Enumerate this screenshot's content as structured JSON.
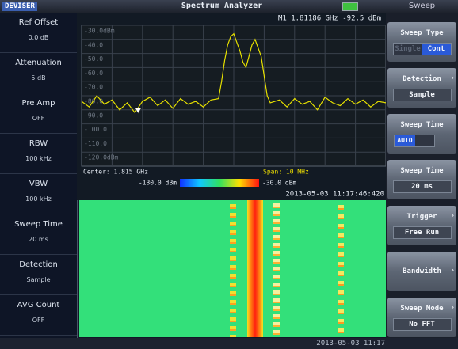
{
  "header": {
    "logo": "DEVISER",
    "title": "Spectrum Analyzer",
    "mode": "Sweep"
  },
  "left_panel": [
    {
      "label": "Ref Offset",
      "value": "0.0 dB"
    },
    {
      "label": "Attenuation",
      "value": "5 dB"
    },
    {
      "label": "Pre Amp",
      "value": "OFF"
    },
    {
      "label": "RBW",
      "value": "100 kHz"
    },
    {
      "label": "VBW",
      "value": "100 kHz"
    },
    {
      "label": "Sweep Time",
      "value": "20 ms"
    },
    {
      "label": "Detection",
      "value": "Sample"
    },
    {
      "label": "AVG Count",
      "value": "OFF"
    }
  ],
  "spectrum": {
    "marker": {
      "label": "M1 1.81186 GHz -92.5 dBm",
      "x": 1.81186,
      "y": -92.5
    },
    "xlim": [
      1.81,
      1.82
    ],
    "ylim": [
      -130,
      -30
    ],
    "yticks": [
      {
        "value": -30,
        "label": "-30.0dBm"
      },
      {
        "value": -40,
        "label": "-40.0"
      },
      {
        "value": -50,
        "label": "-50.0"
      },
      {
        "value": -60,
        "label": "-60.0"
      },
      {
        "value": -70,
        "label": "-70.0"
      },
      {
        "value": -80,
        "label": "-80.0"
      },
      {
        "value": -90,
        "label": "-90.0"
      },
      {
        "value": -100,
        "label": "-100.0"
      },
      {
        "value": -110,
        "label": "-110.0"
      },
      {
        "value": -120,
        "label": "-120.0dBm"
      }
    ],
    "trace": {
      "color": "#e6e000",
      "x": [
        1.81,
        1.81025,
        1.8105,
        1.81075,
        1.811,
        1.81125,
        1.8115,
        1.81175,
        1.812,
        1.81225,
        1.8125,
        1.81275,
        1.813,
        1.81325,
        1.8135,
        1.81375,
        1.814,
        1.81425,
        1.8145,
        1.8146,
        1.8147,
        1.8148,
        1.8149,
        1.815,
        1.8151,
        1.8152,
        1.8153,
        1.8154,
        1.8155,
        1.8156,
        1.8157,
        1.8158,
        1.8159,
        1.816,
        1.8161,
        1.8162,
        1.8165,
        1.81675,
        1.817,
        1.81725,
        1.8175,
        1.81775,
        1.818,
        1.81825,
        1.8185,
        1.81875,
        1.819,
        1.81925,
        1.8195,
        1.81975,
        1.82
      ],
      "values": [
        -84,
        -88,
        -80,
        -86,
        -83,
        -90,
        -85,
        -92,
        -84,
        -81,
        -87,
        -83,
        -89,
        -82,
        -86,
        -84,
        -88,
        -83,
        -82,
        -70,
        -55,
        -44,
        -38,
        -36,
        -42,
        -48,
        -56,
        -60,
        -52,
        -44,
        -40,
        -46,
        -52,
        -66,
        -80,
        -85,
        -83,
        -88,
        -82,
        -86,
        -84,
        -90,
        -81,
        -85,
        -87,
        -82,
        -86,
        -83,
        -88,
        -84,
        -85
      ]
    },
    "center": "Center: 1.815 GHz",
    "span": "Span: 10 MHz"
  },
  "colorbar": {
    "min_label": "-130.0 dBm",
    "max_label": "-30.0 dBm"
  },
  "waterfall": {
    "timestamp": "2013-05-03 11:17:46:420"
  },
  "softkeys": [
    {
      "label": "Sweep Type",
      "options": [
        "Single",
        "Cont"
      ]
    },
    {
      "label": "Detection",
      "value": "Sample"
    },
    {
      "label": "Sweep Time",
      "value": "AUTO"
    },
    {
      "label": "Sweep Time",
      "value": "20 ms"
    },
    {
      "label": "Trigger",
      "value": "Free Run"
    },
    {
      "label": "Bandwidth"
    },
    {
      "label": "Sweep Mode",
      "value": "No FFT"
    }
  ],
  "status": {
    "datetime": "2013-05-03 11:17"
  }
}
